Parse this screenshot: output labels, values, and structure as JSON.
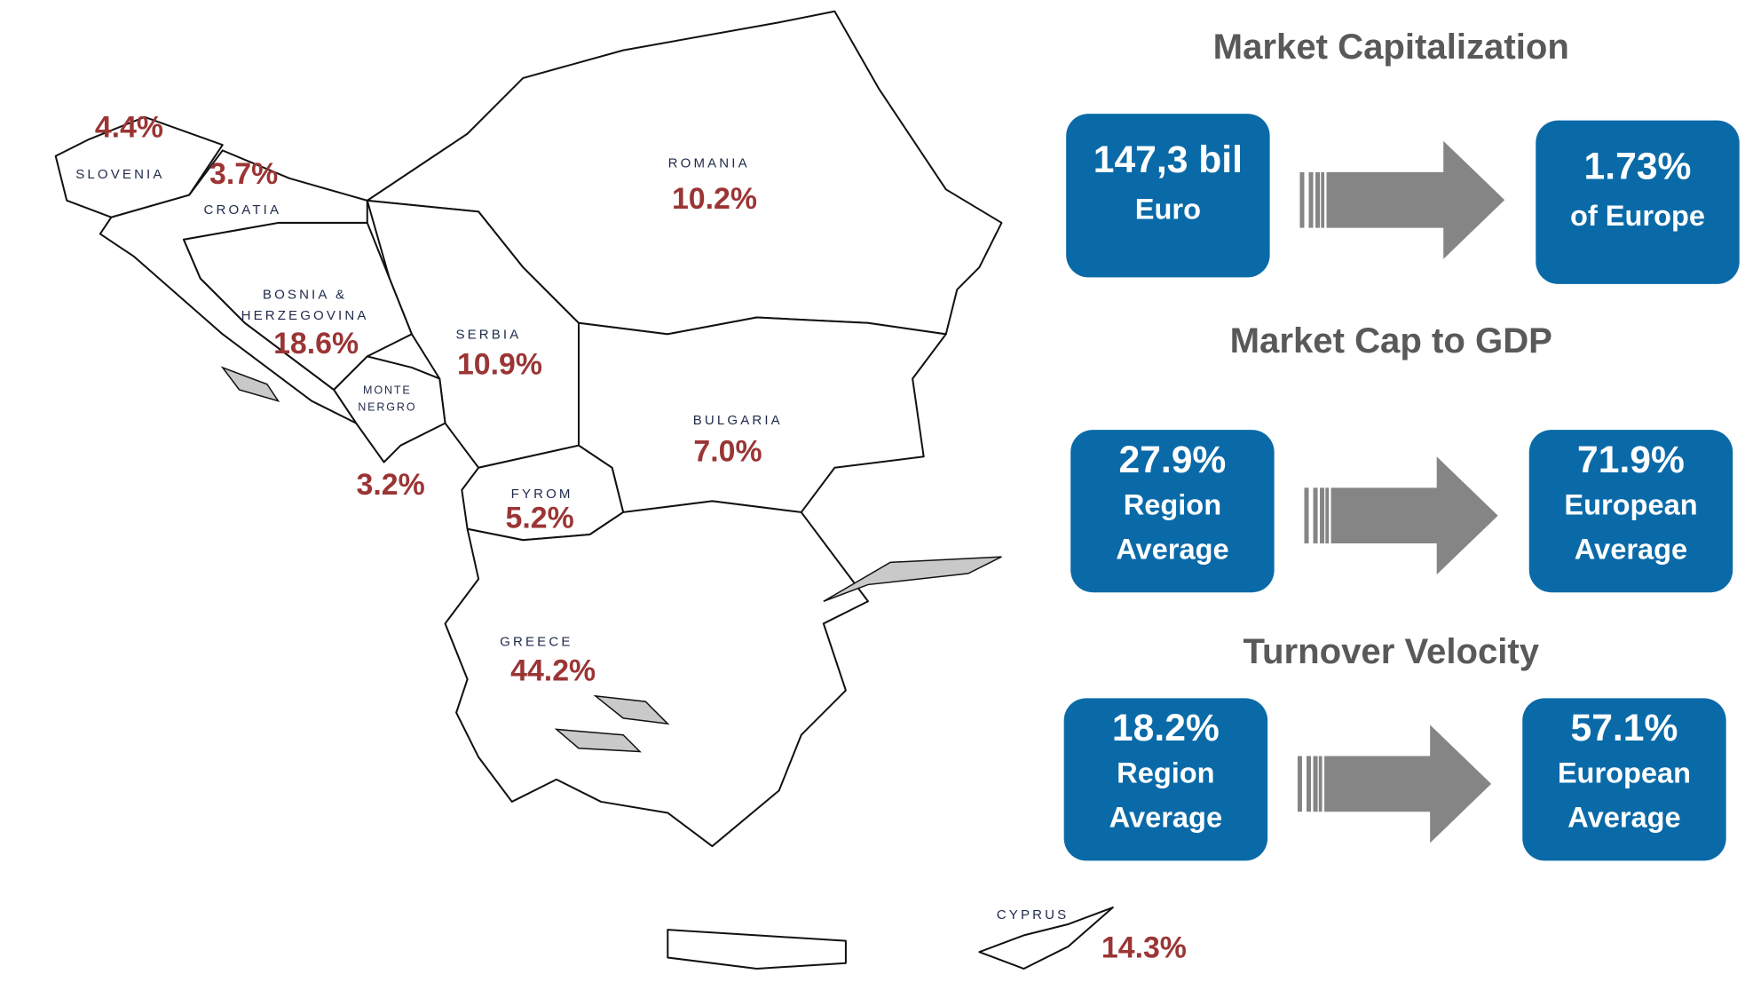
{
  "countries": [
    {
      "name": [
        "SLOVENIA"
      ],
      "share": "4.4%"
    },
    {
      "name": [
        "CROATIA"
      ],
      "share": "3.7%"
    },
    {
      "name": [
        "ROMANIA"
      ],
      "share": "10.2%"
    },
    {
      "name": [
        "BOSNIA &",
        "HERZEGOVINA"
      ],
      "share": "18.6%"
    },
    {
      "name": [
        "SERBIA"
      ],
      "share": "10.9%"
    },
    {
      "name": [
        "MONTE",
        "NERGRO"
      ],
      "share": "3.2%"
    },
    {
      "name": [
        "BULGARIA"
      ],
      "share": "7.0%"
    },
    {
      "name": [
        "FYROM"
      ],
      "share": "5.2%"
    },
    {
      "name": [
        "GREECE"
      ],
      "share": "44.2%"
    },
    {
      "name": [
        "CYPRUS"
      ],
      "share": "14.3%"
    }
  ],
  "panels": [
    {
      "title": "Market Capitalization",
      "from": [
        "147,3 bil",
        "Euro"
      ],
      "to": [
        "1.73%",
        "of Europe"
      ]
    },
    {
      "title": "Market Cap to GDP",
      "from": [
        "27.9%",
        "Region",
        "Average"
      ],
      "to": [
        "71.9%",
        "European",
        "Average"
      ]
    },
    {
      "title": "Turnover Velocity",
      "from": [
        "18.2%",
        "Region",
        "Average"
      ],
      "to": [
        "57.1%",
        "European",
        "Average"
      ]
    }
  ]
}
